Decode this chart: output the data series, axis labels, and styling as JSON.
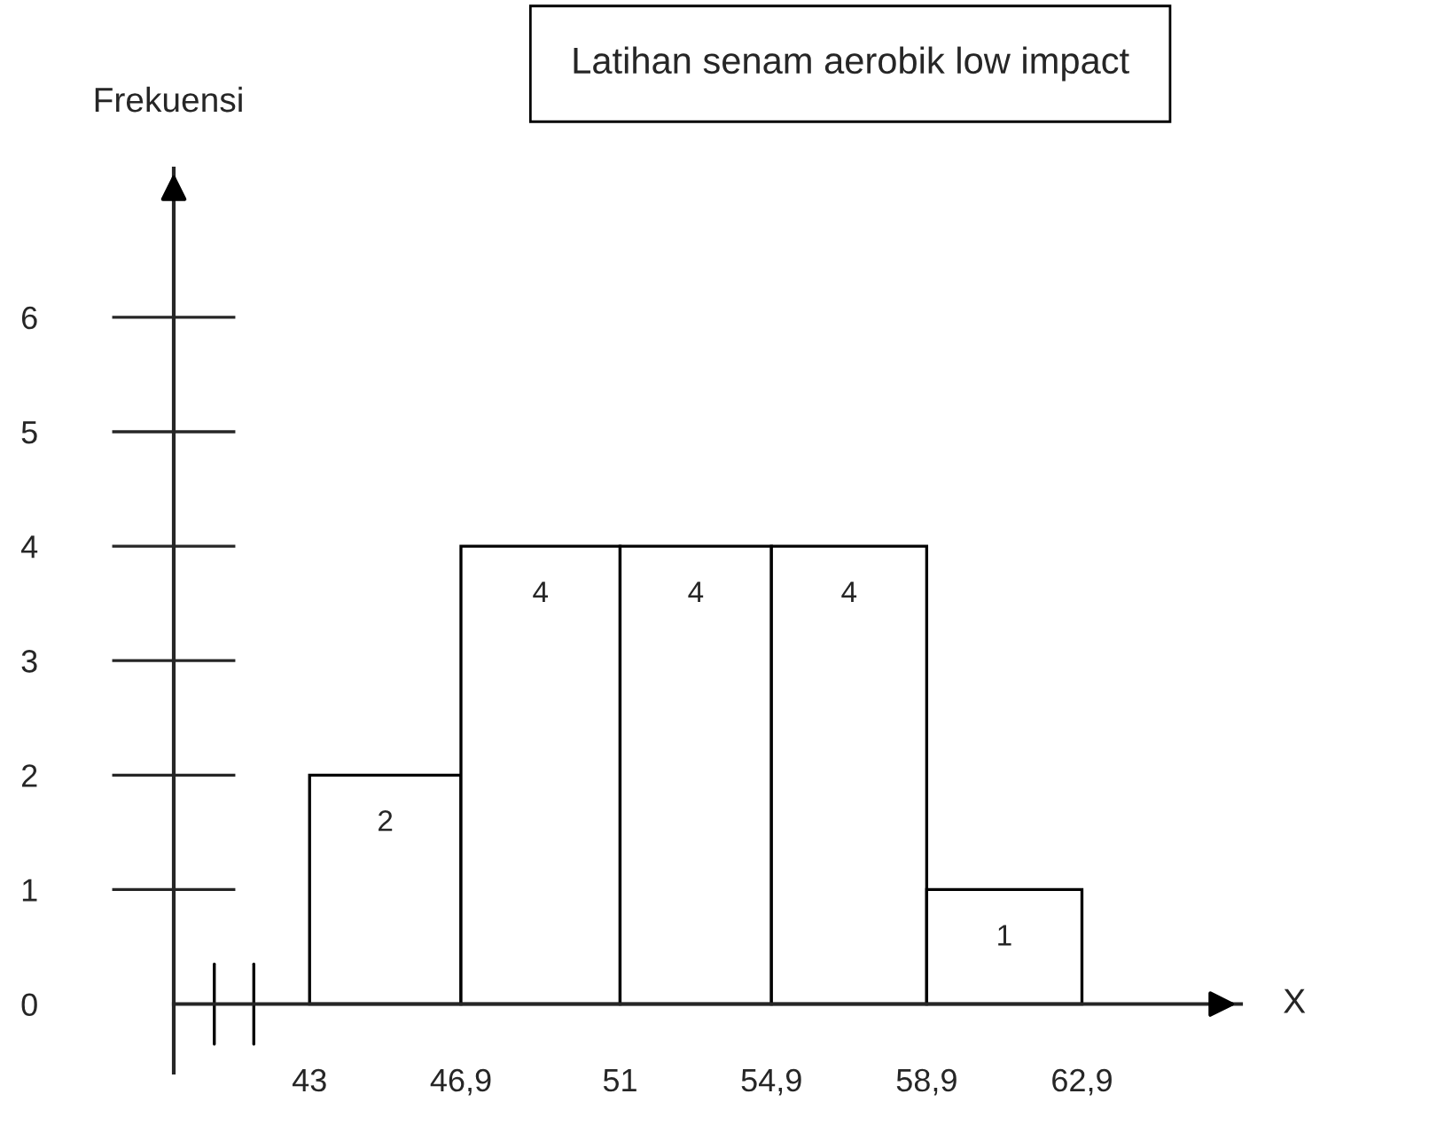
{
  "chart_data": {
    "type": "histogram",
    "title": "Latihan senam aerobik low impact",
    "xlabel": "X",
    "ylabel": "Frekuensi",
    "bins": [
      43,
      46.9,
      51,
      54.9,
      58.9,
      62.9
    ],
    "values": [
      2,
      4,
      4,
      4,
      1
    ],
    "color": "#ffffff",
    "xlim": [
      39.5,
      67
    ],
    "xticks": [
      43,
      {
        "value": 46.9,
        "label": "46,9"
      },
      51,
      {
        "value": 54.9,
        "label": "54,9"
      },
      {
        "value": 58.9,
        "label": "58,9"
      },
      {
        "value": 62.9,
        "label": "62,9"
      }
    ],
    "ylim": [
      -0.6,
      7.3
    ],
    "yticks": [
      0,
      1,
      2,
      3,
      4,
      5,
      6
    ],
    "data_labels": true,
    "grid": false,
    "legend": false
  }
}
